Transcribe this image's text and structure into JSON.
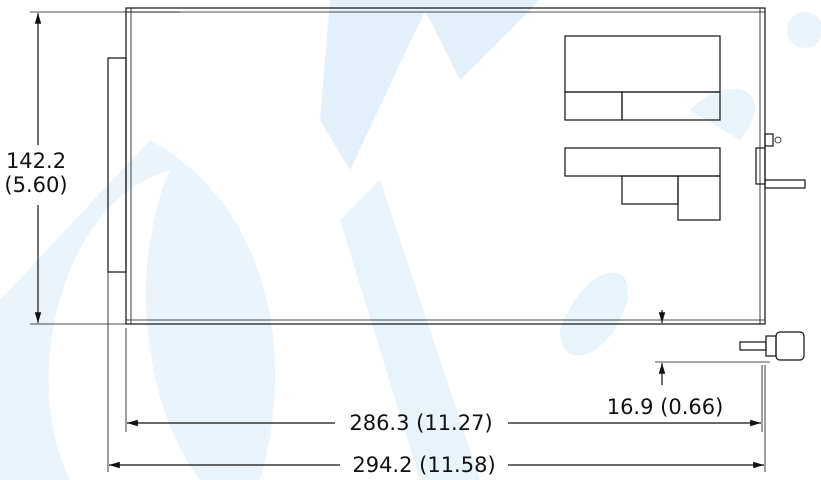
{
  "height_dimension": {
    "mm": "142.2",
    "inch": "(5.60)"
  },
  "length_dimension": "286.3 (11.27)",
  "overall_length_dimension": "294.2 (11.58)",
  "offset_dimension": "16.9 (0.66)"
}
